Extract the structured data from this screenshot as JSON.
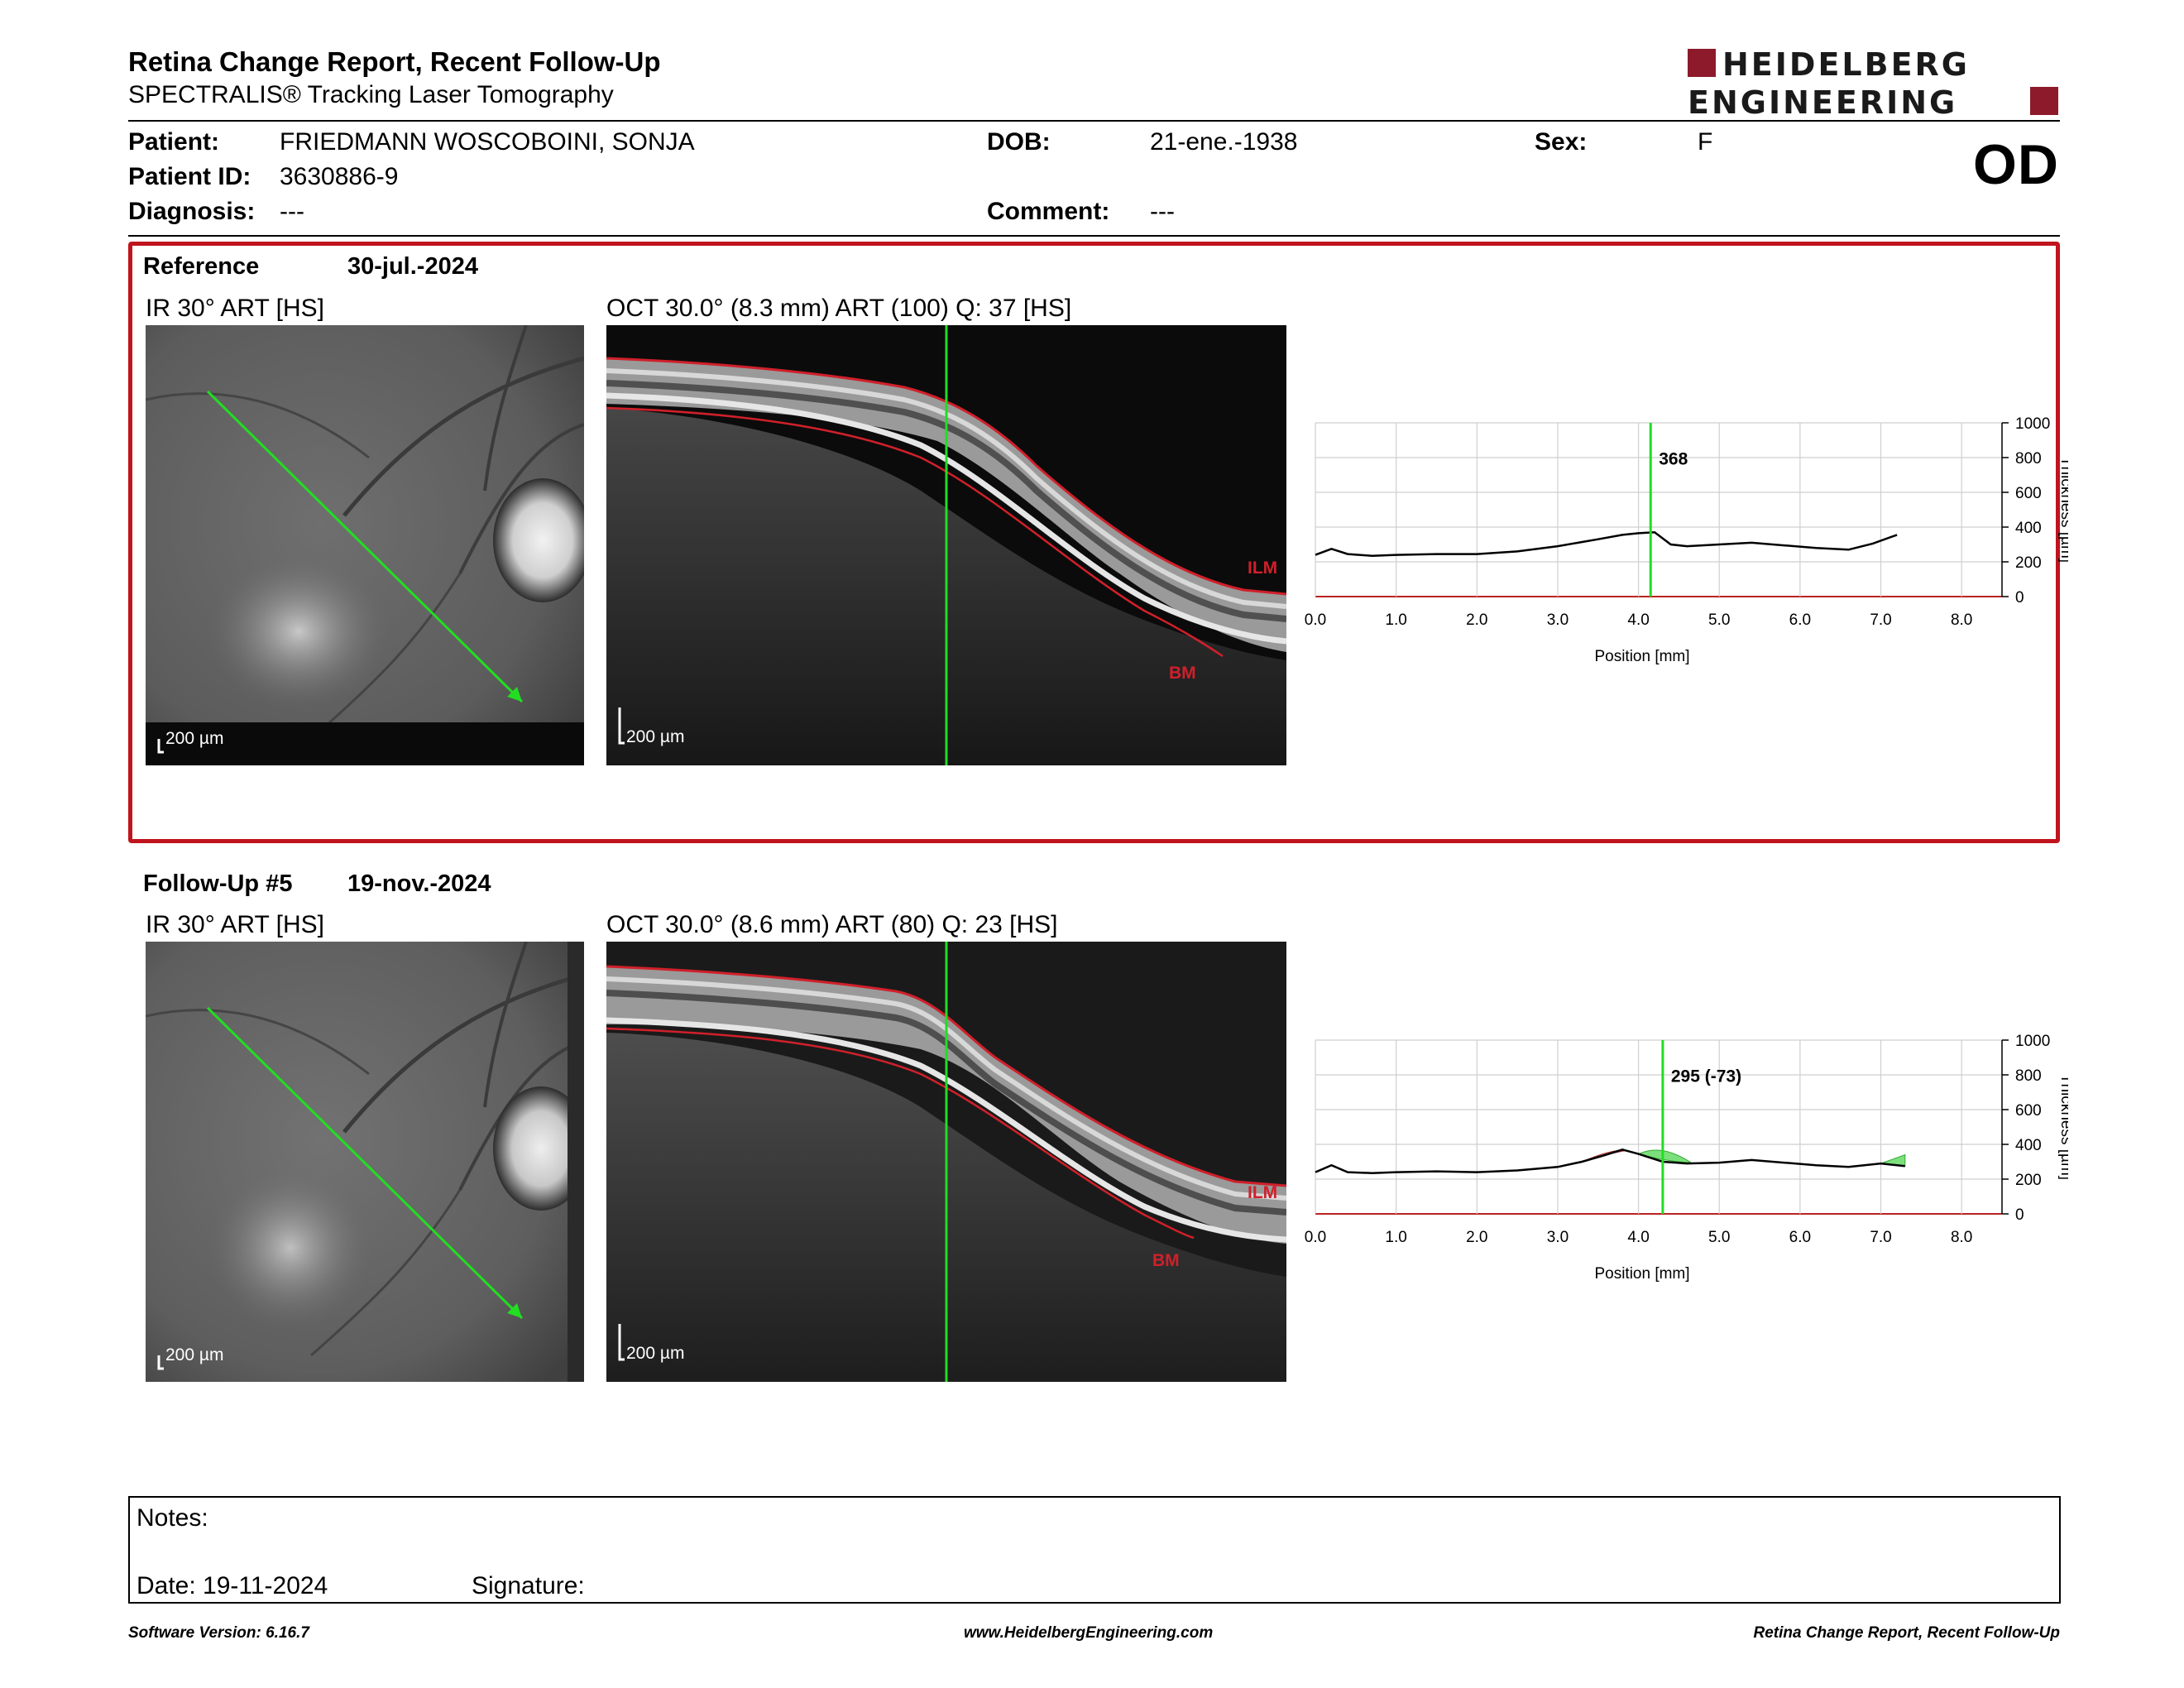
{
  "header": {
    "title": "Retina Change Report, Recent Follow-Up",
    "subtitle": "SPECTRALIS® Tracking Laser Tomography",
    "logo_line1": "HEIDELBERG",
    "logo_line2": "ENGINEERING",
    "brand_color": "#8c1a2b",
    "eye": "OD"
  },
  "patient": {
    "name_label": "Patient:",
    "name": "FRIEDMANN WOSCOBOINI,  SONJA",
    "id_label": "Patient ID:",
    "id": "3630886-9",
    "diagnosis_label": "Diagnosis:",
    "diagnosis": "---",
    "dob_label": "DOB:",
    "dob": "21-ene.-1938",
    "comment_label": "Comment:",
    "comment": "---",
    "sex_label": "Sex:",
    "sex": "F"
  },
  "reference": {
    "label": "Reference",
    "date": "30-jul.-2024",
    "ir_caption": "IR 30° ART [HS]",
    "oct_caption": "OCT 30.0° (8.3 mm) ART (100) Q: 37 [HS]",
    "scale": "200 µm",
    "ilm": "ILM",
    "bm": "BM",
    "cursor_label": "368"
  },
  "followup": {
    "label": "Follow-Up #5",
    "date": "19-nov.-2024",
    "ir_caption": "IR 30° ART [HS]",
    "oct_caption": "OCT 30.0° (8.6 mm) ART (80) Q: 23 [HS]",
    "scale": "200 µm",
    "ilm": "ILM",
    "bm": "BM",
    "cursor_label": "295 (-73)"
  },
  "chart_data": [
    {
      "type": "line",
      "xlabel": "Position [mm]",
      "ylabel": "Thickness [µm]",
      "xlim": [
        0,
        8.5
      ],
      "ylim": [
        0,
        1000
      ],
      "x_ticks": [
        "0.0",
        "1.0",
        "2.0",
        "3.0",
        "4.0",
        "5.0",
        "6.0",
        "7.0",
        "8.0"
      ],
      "y_ticks": [
        "0",
        "200",
        "400",
        "600",
        "800",
        "1000"
      ],
      "cursor_x": 4.15,
      "cursor_value": 368,
      "cursor_color": "#22dd22",
      "grid": true,
      "series": [
        {
          "color": "#000000",
          "x": [
            0.0,
            0.2,
            0.4,
            0.7,
            1.0,
            1.5,
            2.0,
            2.5,
            3.0,
            3.5,
            3.8,
            4.0,
            4.2,
            4.4,
            4.6,
            5.0,
            5.4,
            5.8,
            6.2,
            6.6,
            6.9,
            7.2
          ],
          "y": [
            240,
            275,
            245,
            235,
            240,
            245,
            245,
            260,
            290,
            330,
            355,
            365,
            370,
            300,
            290,
            300,
            310,
            295,
            280,
            270,
            305,
            355
          ]
        }
      ]
    },
    {
      "type": "line",
      "xlabel": "Position [mm]",
      "ylabel": "Thickness [µm]",
      "xlim": [
        0,
        8.5
      ],
      "ylim": [
        0,
        1000
      ],
      "x_ticks": [
        "0.0",
        "1.0",
        "2.0",
        "3.0",
        "4.0",
        "5.0",
        "6.0",
        "7.0",
        "8.0"
      ],
      "y_ticks": [
        "0",
        "200",
        "400",
        "600",
        "800",
        "1000"
      ],
      "cursor_x": 4.3,
      "cursor_value": 295,
      "cursor_delta": -73,
      "cursor_color": "#22dd22",
      "grid": true,
      "series": [
        {
          "color": "#000000",
          "x": [
            0.0,
            0.2,
            0.4,
            0.7,
            1.0,
            1.5,
            2.0,
            2.5,
            3.0,
            3.3,
            3.6,
            3.8,
            4.0,
            4.3,
            4.6,
            5.0,
            5.4,
            5.8,
            6.2,
            6.6,
            7.0,
            7.3
          ],
          "y": [
            240,
            280,
            240,
            235,
            240,
            245,
            240,
            250,
            270,
            300,
            340,
            370,
            345,
            300,
            290,
            295,
            310,
            295,
            280,
            270,
            290,
            275
          ]
        }
      ],
      "decrease_color": "#d96b6b",
      "increase_color": "#7be07b"
    }
  ],
  "notes": {
    "label": "Notes:",
    "date_label": "Date: 19-11-2024",
    "signature_label": "Signature:"
  },
  "footer": {
    "left": "Software Version: 6.16.7",
    "center": "www.HeidelbergEngineering.com",
    "right": "Retina Change Report, Recent Follow-Up"
  }
}
